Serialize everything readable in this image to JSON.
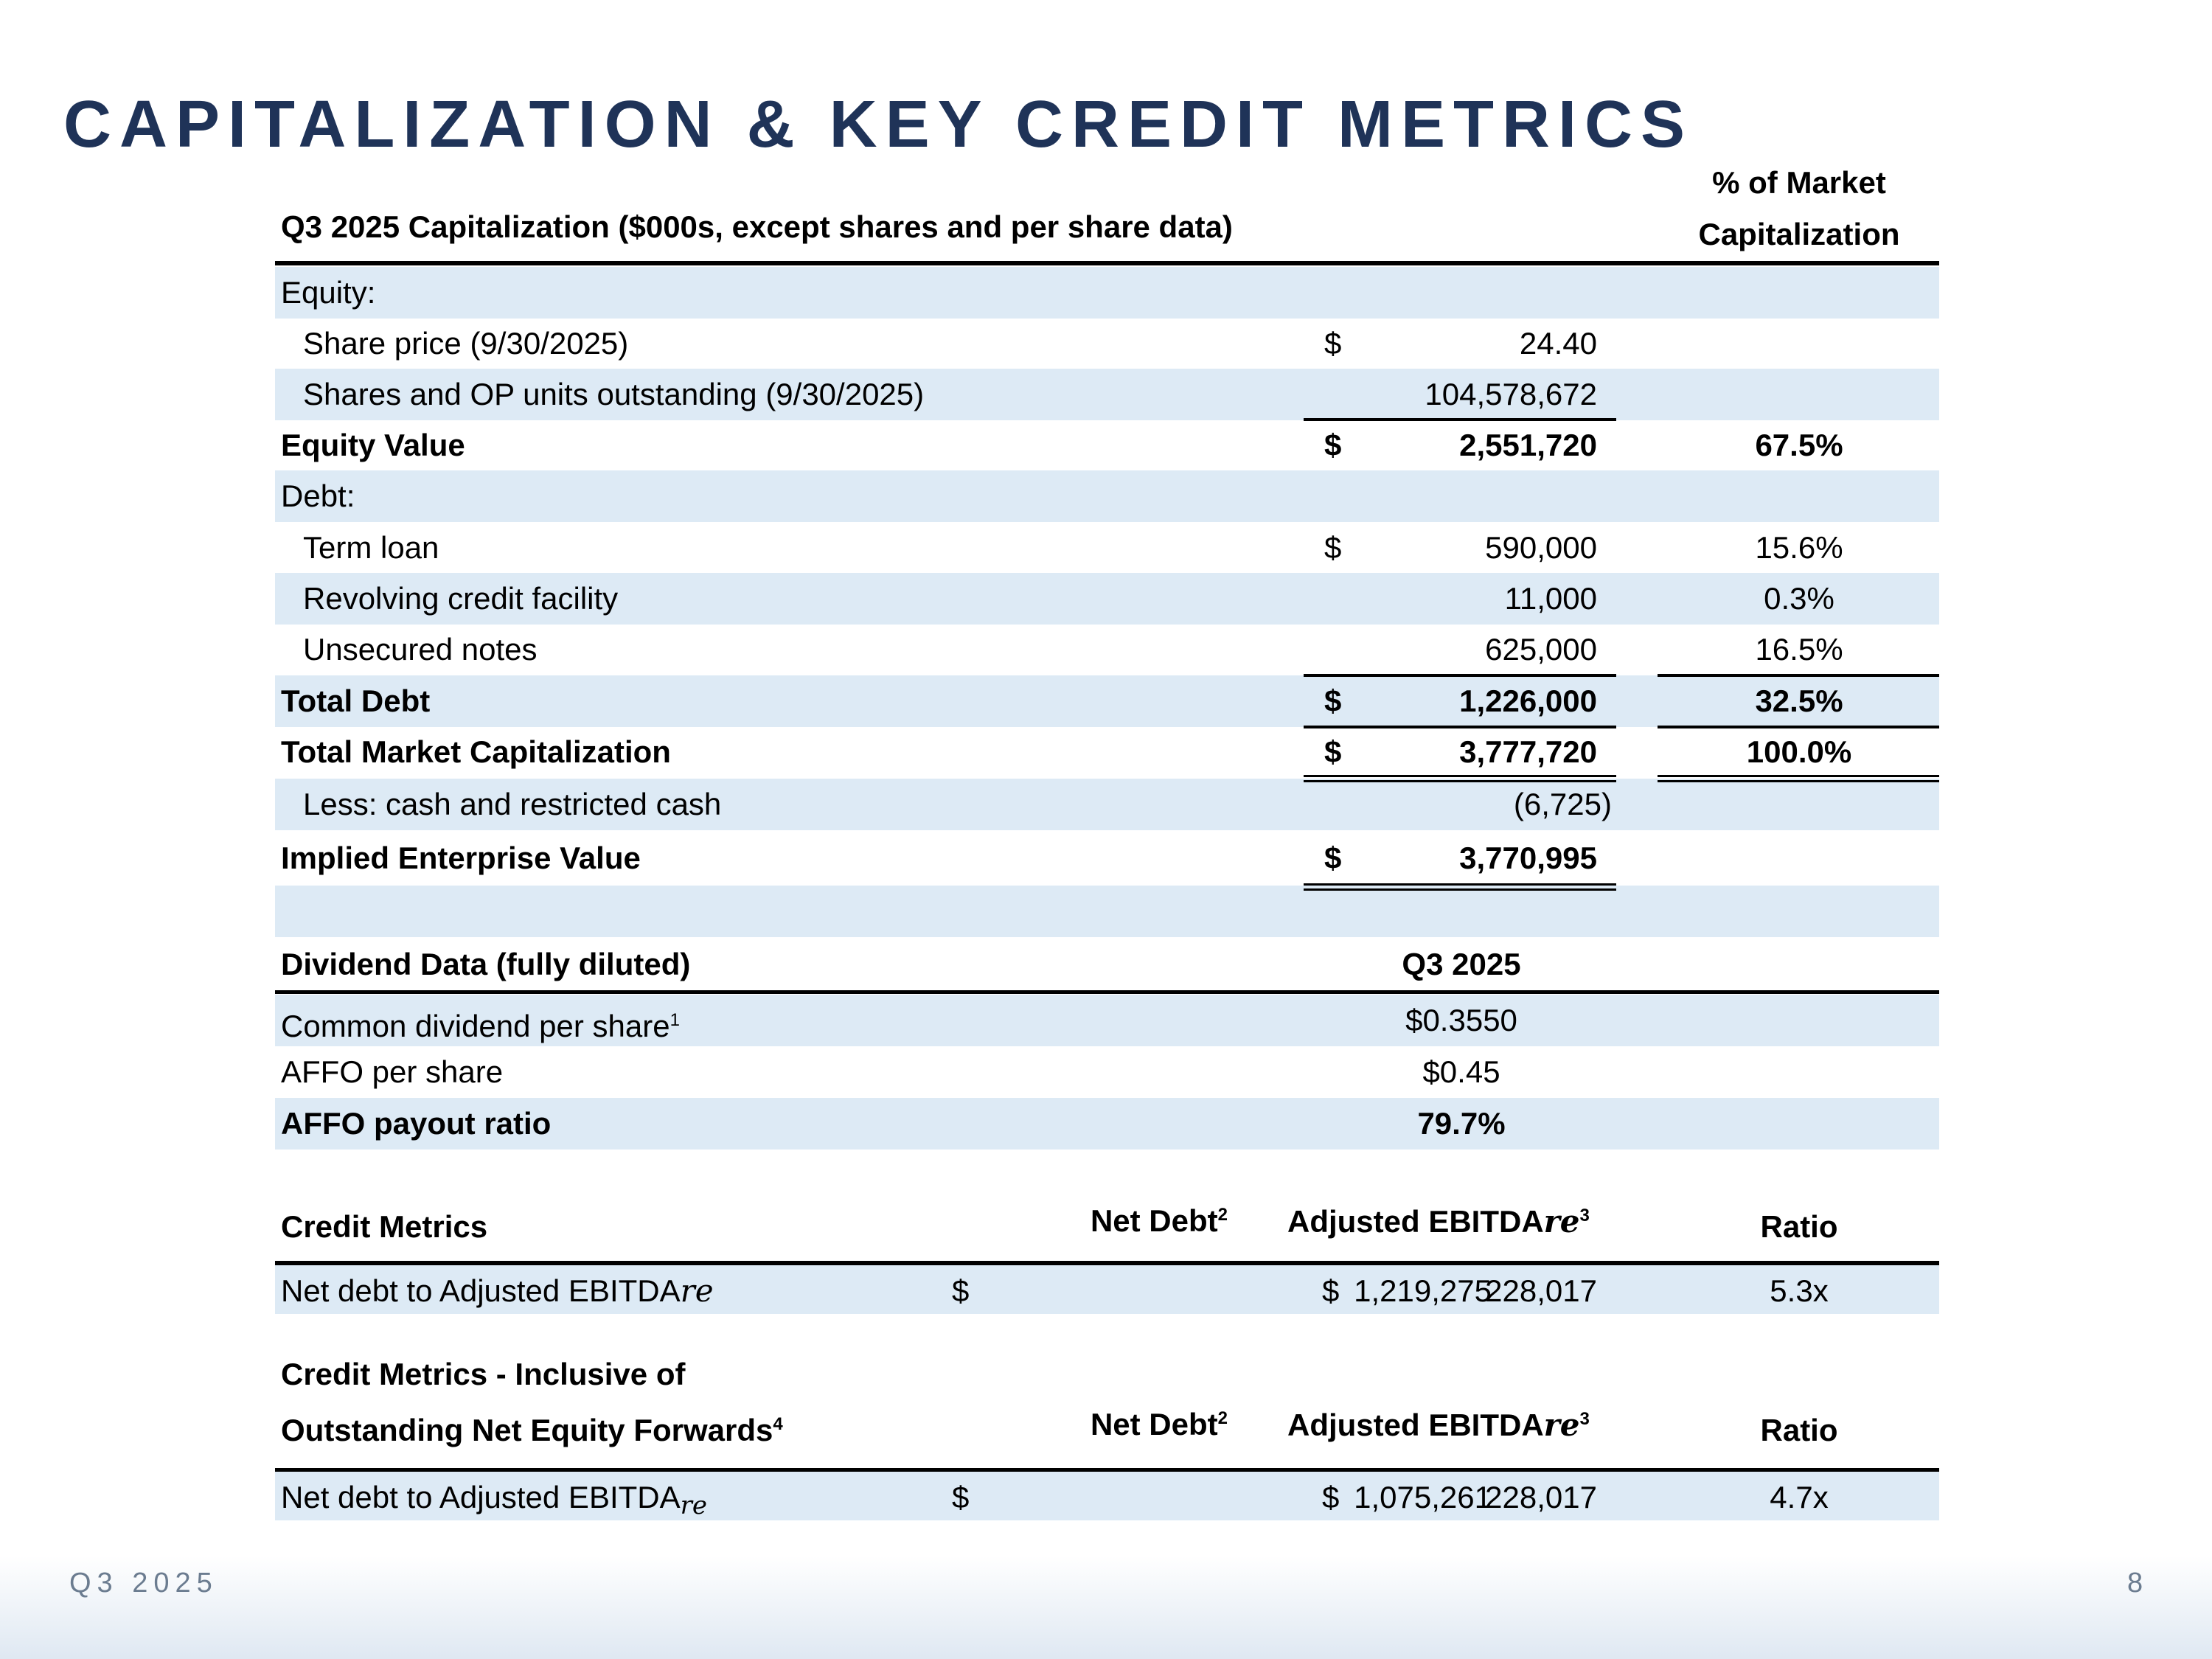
{
  "title": "CAPITALIZATION & KEY CREDIT METRICS",
  "cap_table": {
    "header": "Q3 2025 Capitalization ($000s, except shares and per share data)",
    "pct_header_line1": "% of Market",
    "pct_header_line2": "Capitalization",
    "rows": [
      {
        "label": "Equity:",
        "dollar": "",
        "value": "",
        "pct": "",
        "bold": false,
        "indent": false
      },
      {
        "label": "Share price (9/30/2025)",
        "dollar": "$",
        "value": "24.40",
        "pct": "",
        "bold": false,
        "indent": true
      },
      {
        "label": "Shares and OP units outstanding (9/30/2025)",
        "dollar": "",
        "value": "104,578,672",
        "pct": "",
        "bold": false,
        "indent": true
      },
      {
        "label": "Equity Value",
        "dollar": "$",
        "value": "2,551,720",
        "pct": "67.5%",
        "bold": true,
        "indent": false
      },
      {
        "label": "Debt:",
        "dollar": "",
        "value": "",
        "pct": "",
        "bold": false,
        "indent": false
      },
      {
        "label": "Term loan",
        "dollar": "$",
        "value": "590,000",
        "pct": "15.6%",
        "bold": false,
        "indent": true
      },
      {
        "label": "Revolving credit facility",
        "dollar": "",
        "value": "11,000",
        "pct": "0.3%",
        "bold": false,
        "indent": true
      },
      {
        "label": "Unsecured notes",
        "dollar": "",
        "value": "625,000",
        "pct": "16.5%",
        "bold": false,
        "indent": true
      },
      {
        "label": "Total Debt",
        "dollar": "$",
        "value": "1,226,000",
        "pct": "32.5%",
        "bold": true,
        "indent": false
      },
      {
        "label": "Total Market Capitalization",
        "dollar": "$",
        "value": "3,777,720",
        "pct": "100.0%",
        "bold": true,
        "indent": false
      },
      {
        "label": "Less: cash and restricted cash",
        "dollar": "",
        "value": "(6,725)",
        "pct": "",
        "bold": false,
        "indent": true
      },
      {
        "label": "Implied Enterprise Value",
        "dollar": "$",
        "value": "3,770,995",
        "pct": "",
        "bold": true,
        "indent": false
      },
      {
        "label": "",
        "dollar": "",
        "value": "",
        "pct": "",
        "bold": false,
        "indent": false
      }
    ]
  },
  "dividend": {
    "header": "Dividend Data (fully diluted)",
    "period": "Q3 2025",
    "rows": [
      {
        "label": "Common dividend per share",
        "sup": "1",
        "value": "$0.3550",
        "bold": false
      },
      {
        "label": "AFFO per share",
        "sup": "",
        "value": "$0.45",
        "bold": false
      },
      {
        "label": "AFFO payout ratio",
        "sup": "",
        "value": "79.7%",
        "bold": true
      }
    ]
  },
  "credit": [
    {
      "header_line1": "Credit Metrics",
      "header_line2": "",
      "header_sup": "",
      "net_debt_header": "Net Debt",
      "net_debt_sup": "2",
      "ebitda_header": "Adjusted EBITDA",
      "ebitda_suffix": "re",
      "ebitda_sup": "3",
      "ratio_header": "Ratio",
      "row": {
        "label": "Net debt to Adjusted EBITDA",
        "suffix": "re",
        "dollar1": "$",
        "net_debt": "1,219,275",
        "dollar2": "$",
        "ebitda": "228,017",
        "ratio": "5.3x"
      }
    },
    {
      "header_line1": "Credit Metrics - Inclusive of",
      "header_line2": "Outstanding Net Equity Forwards",
      "header_sup": "4",
      "net_debt_header": "Net Debt",
      "net_debt_sup": "2",
      "ebitda_header": "Adjusted EBITDA",
      "ebitda_suffix": "re",
      "ebitda_sup": "3",
      "ratio_header": "Ratio",
      "row": {
        "label": "Net debt to Adjusted EBITDA",
        "suffix": "re",
        "dollar1": "$",
        "net_debt": "1,075,261",
        "dollar2": "$",
        "ebitda": "228,017",
        "ratio": "4.7x"
      }
    }
  ],
  "footer": {
    "period": "Q3 2025",
    "page": "8"
  },
  "colors": {
    "title": "#1f3358",
    "row_shade": "#ddeaf5",
    "footer_text": "#6b7c90"
  }
}
